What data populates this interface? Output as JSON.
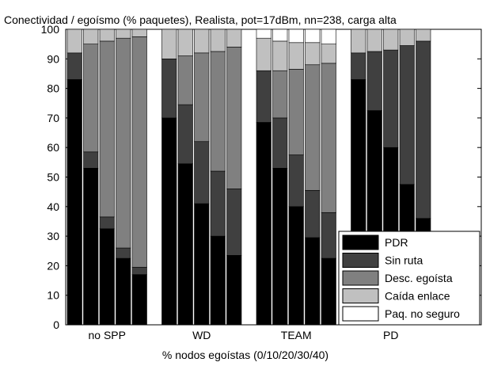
{
  "chart_data": {
    "type": "bar",
    "stacked": true,
    "title": "Conectividad / egoísmo (% paquetes), Realista, pot=17dBm, nn=238, carga alta",
    "xlabel": "% nodos egoístas (0/10/20/30/40)",
    "ylabel": "",
    "ylim": [
      0,
      100
    ],
    "yticks": [
      0,
      10,
      20,
      30,
      40,
      50,
      60,
      70,
      80,
      90,
      100
    ],
    "grid": false,
    "legend_position": "bottom-right",
    "groups": [
      {
        "name": "no SPP",
        "bars": 5
      },
      {
        "name": "WD",
        "bars": 5
      },
      {
        "name": "TEAM",
        "bars": 5
      },
      {
        "name": "PD",
        "bars": 5
      }
    ],
    "categories": [
      "no SPP 0",
      "no SPP 10",
      "no SPP 20",
      "no SPP 30",
      "no SPP 40",
      "WD 0",
      "WD 10",
      "WD 20",
      "WD 30",
      "WD 40",
      "TEAM 0",
      "TEAM 10",
      "TEAM 20",
      "TEAM 30",
      "TEAM 40",
      "PD 0",
      "PD 10",
      "PD 20",
      "PD 30",
      "PD 40"
    ],
    "series": [
      {
        "name": "PDR",
        "color": "#000000",
        "values": [
          83,
          53,
          32.5,
          22.5,
          17,
          70,
          54.5,
          41,
          30,
          23.5,
          68.5,
          53,
          40,
          29.5,
          22.5,
          83,
          72.5,
          60,
          47.5,
          36
        ]
      },
      {
        "name": "Sin ruta",
        "color": "#404040",
        "values": [
          9,
          5.5,
          4,
          3.5,
          2.5,
          20,
          20,
          21,
          22,
          22.5,
          17.5,
          17,
          17.5,
          16,
          15.5,
          9,
          20,
          33,
          47,
          60
        ]
      },
      {
        "name": "Desc. egoísta",
        "color": "#808080",
        "values": [
          0,
          36.5,
          59.5,
          71,
          78,
          0,
          16.5,
          30,
          40.5,
          48,
          0,
          16,
          29,
          42.5,
          50.5,
          0,
          0,
          0,
          0,
          0
        ]
      },
      {
        "name": "Caída enlace",
        "color": "#c0c0c0",
        "values": [
          8,
          5,
          4,
          3,
          2.5,
          10,
          9,
          8,
          7.5,
          6,
          11,
          10,
          9,
          7.5,
          6.5,
          8,
          7.5,
          7,
          5.5,
          4
        ]
      },
      {
        "name": "Paq. no seguro",
        "color": "#ffffff",
        "values": [
          0,
          0,
          0,
          0,
          0,
          0,
          0,
          0,
          0,
          0,
          3,
          4,
          4.5,
          4.5,
          5,
          0,
          0,
          0,
          0,
          0
        ]
      }
    ]
  }
}
